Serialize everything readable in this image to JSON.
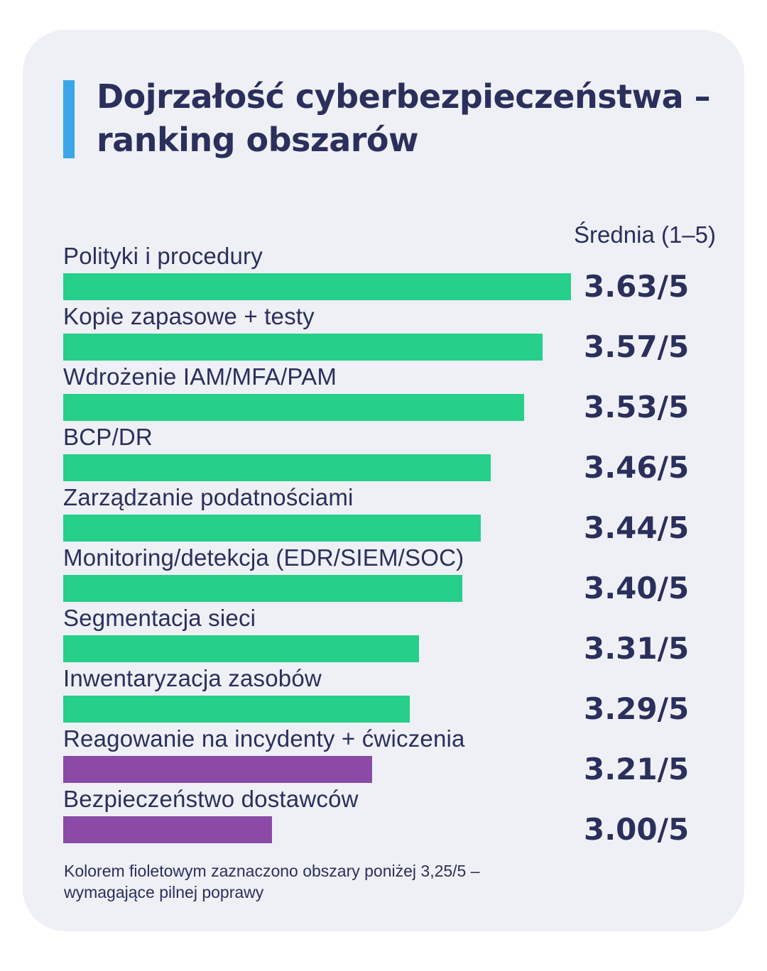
{
  "title_line1": "Dojrzałość cyberbezpieczeństwa –",
  "title_line2": "ranking obszarów",
  "column_header": "Średnia (1–5)",
  "footnote_line1": "Kolorem fioletowym zaznaczono obszary poniżej 3,25/5 –",
  "footnote_line2": "wymagające pilnej poprawy",
  "colors": {
    "ok": "#26cf8a",
    "needs_improvement": "#8a4aa6",
    "accent": "#3aa6e8"
  },
  "chart_data": {
    "type": "bar",
    "orientation": "horizontal",
    "categories": [
      "Polityki i procedury",
      "Kopie zapasowe + testy",
      "Wdrożenie IAM/MFA/PAM",
      "BCP/DR",
      "Zarządzanie podatnościami",
      "Monitoring/detekcja (EDR/SIEM/SOC)",
      "Segmentacja sieci",
      "Inwentaryzacja zasobów",
      "Reagowanie na incydenty + ćwiczenia",
      "Bezpieczeństwo dostawców"
    ],
    "values": [
      3.63,
      3.57,
      3.53,
      3.46,
      3.44,
      3.4,
      3.31,
      3.29,
      3.21,
      3.0
    ],
    "value_labels": [
      "3.63/5",
      "3.57/5",
      "3.53/5",
      "3.46/5",
      "3.44/5",
      "3.40/5",
      "3.31/5",
      "3.29/5",
      "3.21/5",
      "3.00/5"
    ],
    "threshold": 3.25,
    "grid": false,
    "legend": "none"
  }
}
